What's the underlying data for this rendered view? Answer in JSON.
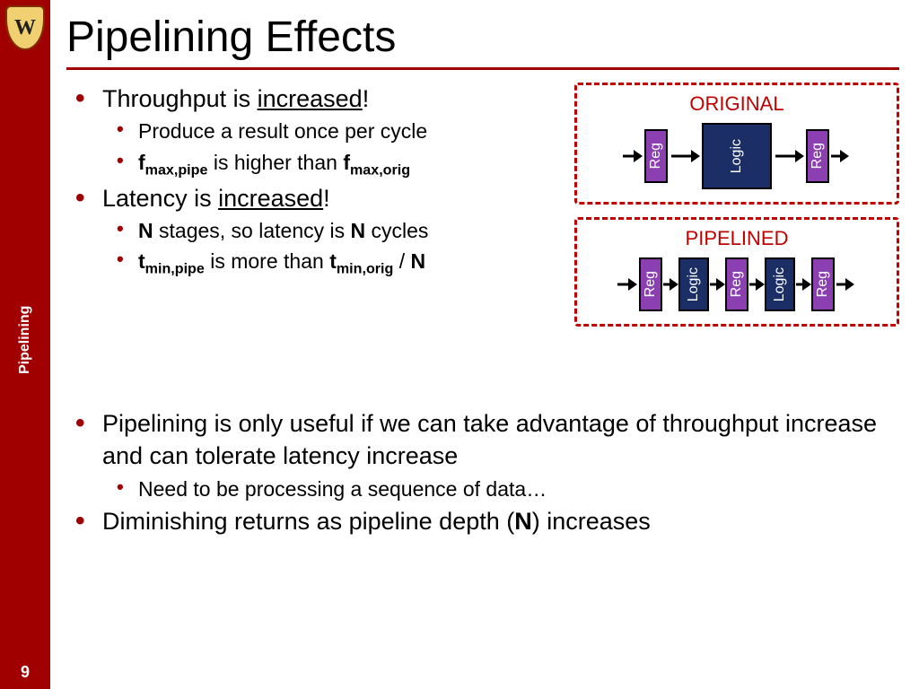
{
  "sidebar": {
    "crest_letter": "W",
    "topic": "Pipelining",
    "page_number": "9",
    "bg_color": "#a00000"
  },
  "title": "Pipelining Effects",
  "bullets_top": {
    "b1": {
      "pre": "Throughput is ",
      "u": "increased",
      "post": "!"
    },
    "b1s1": "Produce a result once per cycle",
    "b1s2": {
      "f1": "f",
      "sub1": "max,pipe",
      "mid": " is higher than ",
      "f2": "f",
      "sub2": "max,orig"
    },
    "b2": {
      "pre": "Latency is ",
      "u": "increased",
      "post": "!"
    },
    "b2s1": {
      "n1": "N",
      "mid1": " stages, so latency is ",
      "n2": "N",
      "post": " cycles"
    },
    "b2s2": {
      "t1": "t",
      "sub1": "min,pipe",
      "mid": " is more than ",
      "t2": "t",
      "sub2": "min,orig",
      "div": " / ",
      "n": "N"
    }
  },
  "bullets_bottom": {
    "b3": "Pipelining is only useful if we can take advantage of throughput increase and can tolerate latency increase",
    "b3s1": "Need to be processing a sequence of data…",
    "b4": {
      "pre": "Diminishing returns as pipeline depth (",
      "n": "N",
      "post": ") increases"
    }
  },
  "diagrams": {
    "original": {
      "title": "ORIGINAL",
      "blocks": [
        "Reg",
        "Logic",
        "Reg"
      ],
      "reg_color": "#8b3fb0",
      "logic_color": "#1b2f66",
      "border_color": "#c00000"
    },
    "pipelined": {
      "title": "PIPELINED",
      "blocks": [
        "Reg",
        "Logic",
        "Reg",
        "Logic",
        "Reg"
      ],
      "reg_color": "#8b3fb0",
      "logic_color": "#1b2f66",
      "border_color": "#c00000"
    }
  }
}
